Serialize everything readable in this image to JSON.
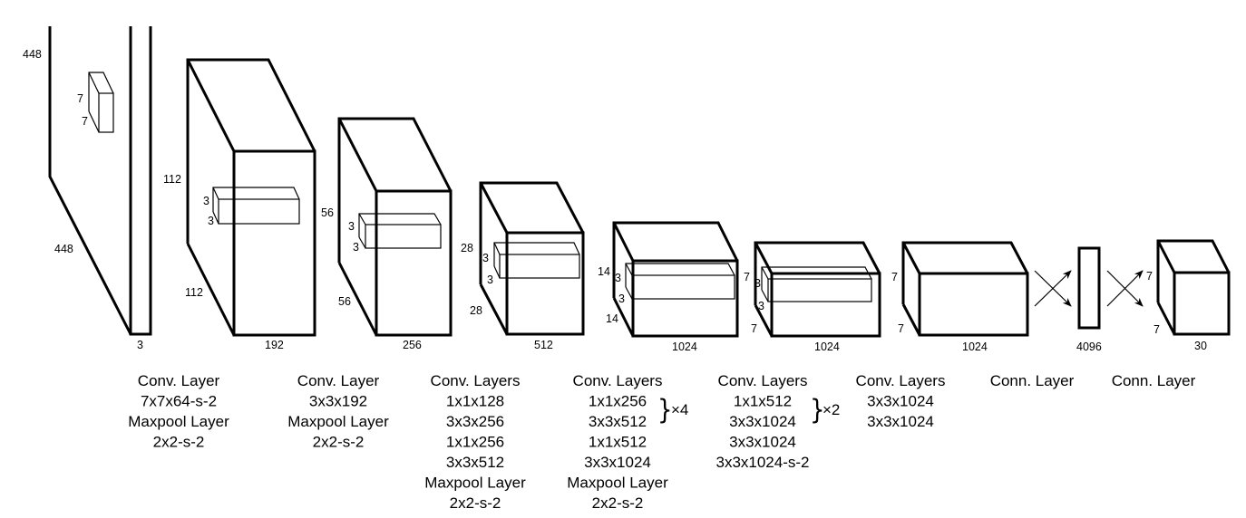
{
  "layers": [
    {
      "dims": [
        "448",
        "448",
        "3"
      ],
      "kernel": [
        "7",
        "7"
      ],
      "caption": [
        "Conv. Layer",
        "7x7x64-s-2",
        "Maxpool Layer",
        "2x2-s-2"
      ]
    },
    {
      "dims": [
        "112",
        "112",
        "192"
      ],
      "kernel": [
        "3",
        "3"
      ],
      "caption": [
        "Conv. Layer",
        "3x3x192",
        "Maxpool Layer",
        "2x2-s-2"
      ]
    },
    {
      "dims": [
        "56",
        "56",
        "256"
      ],
      "kernel": [
        "3",
        "3"
      ],
      "caption": [
        "Conv. Layers",
        "1x1x128",
        "3x3x256",
        "1x1x256",
        "3x3x512",
        "Maxpool Layer",
        "2x2-s-2"
      ]
    },
    {
      "dims": [
        "28",
        "28",
        "512"
      ],
      "kernel": [
        "3",
        "3"
      ],
      "caption": [
        "Conv. Layers",
        "1x1x256",
        "3x3x512",
        "1x1x512",
        "3x3x1024",
        "Maxpool Layer",
        "2x2-s-2"
      ],
      "repeat": "×4"
    },
    {
      "dims": [
        "14",
        "14",
        "1024"
      ],
      "kernel": [
        "3",
        "3"
      ],
      "caption": [
        "Conv. Layers",
        "1x1x512",
        "3x3x1024",
        "3x3x1024",
        "3x3x1024-s-2"
      ],
      "repeat": "×2"
    },
    {
      "dims": [
        "7",
        "7",
        "1024"
      ],
      "kernel": [
        "3",
        "3"
      ],
      "caption": [
        "Conv. Layers",
        "3x3x1024",
        "3x3x1024"
      ]
    },
    {
      "dims": [
        "7",
        "7",
        "1024"
      ],
      "caption": [
        "Conn. Layer"
      ]
    },
    {
      "dims": [
        "4096"
      ],
      "caption": [
        "Conn. Layer"
      ]
    },
    {
      "dims": [
        "7",
        "7",
        "30"
      ]
    }
  ]
}
